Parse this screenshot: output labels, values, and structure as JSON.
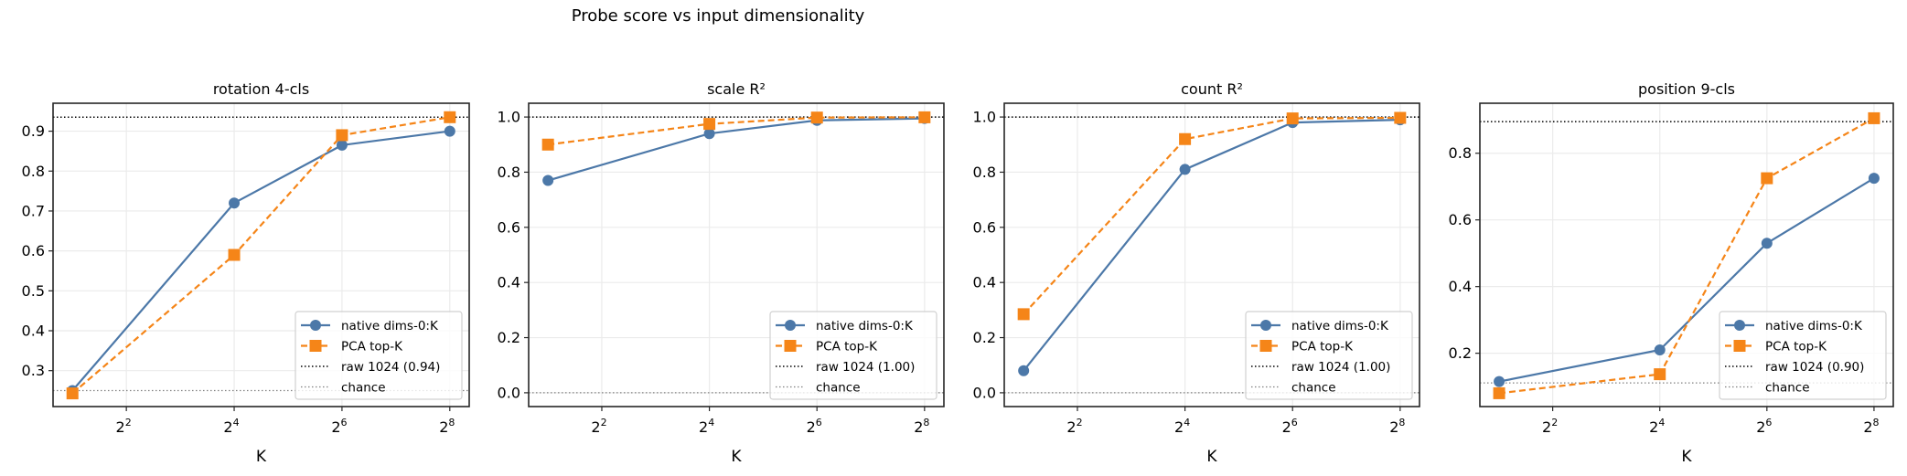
{
  "chart_data": {
    "type": "line",
    "title": "Probe score vs input dimensionality",
    "colors": {
      "native": "#4c78a8",
      "pca": "#f58518",
      "raw": "#000000",
      "chance": "#808080",
      "grid": "#ebebeb",
      "axis": "#262626"
    },
    "legend_labels": {
      "native": "native dims-0:K",
      "pca": "PCA top-K"
    },
    "legend_placement": "lower-right",
    "grid": true,
    "x_scale": "log2",
    "x": [
      2,
      16,
      64,
      256
    ],
    "panels": [
      {
        "title": "rotation 4-cls",
        "xlabel": "K",
        "ylabel": "",
        "xlim_log2": [
          0.64,
          8.36
        ],
        "ylim": [
          0.21,
          0.97
        ],
        "yticks": [
          0.3,
          0.4,
          0.5,
          0.6,
          0.7,
          0.8,
          0.9
        ],
        "ytick_labels": [
          "0.3",
          "0.4",
          "0.5",
          "0.6",
          "0.7",
          "0.8",
          "0.9"
        ],
        "xticks_log2": [
          2,
          4,
          6,
          8
        ],
        "series": [
          {
            "name": "native dims-0:K",
            "values": [
              0.25,
              0.72,
              0.865,
              0.9
            ]
          },
          {
            "name": "PCA top-K",
            "values": [
              0.243,
              0.59,
              0.89,
              0.935
            ]
          }
        ],
        "raw": 0.935,
        "raw_label": "raw 1024 (0.94)",
        "chance": 0.25,
        "chance_label": "chance"
      },
      {
        "title": "scale R²",
        "xlabel": "K",
        "ylabel": "",
        "xlim_log2": [
          0.64,
          8.36
        ],
        "ylim": [
          -0.05,
          1.05
        ],
        "yticks": [
          0.0,
          0.2,
          0.4,
          0.6,
          0.8,
          1.0
        ],
        "ytick_labels": [
          "0.0",
          "0.2",
          "0.4",
          "0.6",
          "0.8",
          "1.0"
        ],
        "xticks_log2": [
          2,
          4,
          6,
          8
        ],
        "series": [
          {
            "name": "native dims-0:K",
            "values": [
              0.77,
              0.94,
              0.988,
              0.995
            ]
          },
          {
            "name": "PCA top-K",
            "values": [
              0.9,
              0.975,
              0.998,
              0.999
            ]
          }
        ],
        "raw": 1.0,
        "raw_label": "raw 1024 (1.00)",
        "chance": 0.0,
        "chance_label": "chance"
      },
      {
        "title": "count R²",
        "xlabel": "K",
        "ylabel": "",
        "xlim_log2": [
          0.64,
          8.36
        ],
        "ylim": [
          -0.05,
          1.05
        ],
        "yticks": [
          0.0,
          0.2,
          0.4,
          0.6,
          0.8,
          1.0
        ],
        "ytick_labels": [
          "0.0",
          "0.2",
          "0.4",
          "0.6",
          "0.8",
          "1.0"
        ],
        "xticks_log2": [
          2,
          4,
          6,
          8
        ],
        "series": [
          {
            "name": "native dims-0:K",
            "values": [
              0.08,
              0.81,
              0.98,
              0.99
            ]
          },
          {
            "name": "PCA top-K",
            "values": [
              0.285,
              0.92,
              0.995,
              0.997
            ]
          }
        ],
        "raw": 1.0,
        "raw_label": "raw 1024 (1.00)",
        "chance": 0.0,
        "chance_label": "chance"
      },
      {
        "title": "position 9-cls",
        "xlabel": "K",
        "ylabel": "",
        "xlim_log2": [
          0.64,
          8.36
        ],
        "ylim": [
          0.04,
          0.95
        ],
        "yticks": [
          0.2,
          0.4,
          0.6,
          0.8
        ],
        "ytick_labels": [
          "0.2",
          "0.4",
          "0.6",
          "0.8"
        ],
        "xticks_log2": [
          2,
          4,
          6,
          8
        ],
        "series": [
          {
            "name": "native dims-0:K",
            "values": [
              0.115,
              0.21,
              0.53,
              0.725
            ]
          },
          {
            "name": "PCA top-K",
            "values": [
              0.08,
              0.137,
              0.725,
              0.905
            ]
          }
        ],
        "raw": 0.895,
        "raw_label": "raw 1024 (0.90)",
        "chance": 0.111,
        "chance_label": "chance"
      }
    ]
  }
}
